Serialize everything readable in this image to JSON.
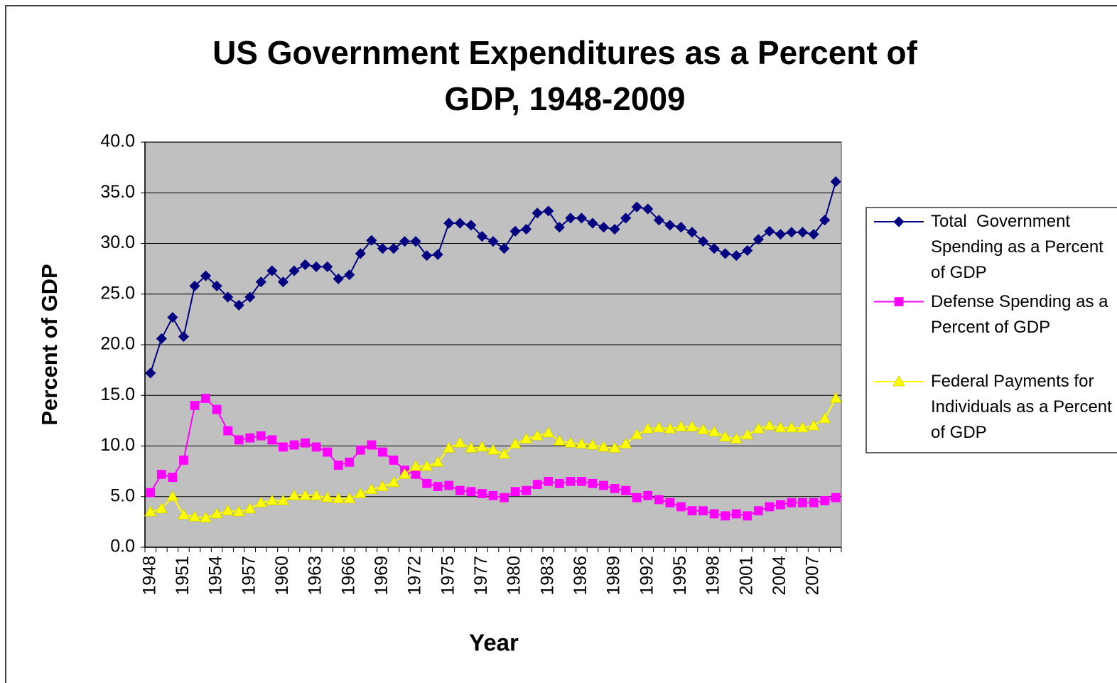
{
  "chart_data": {
    "type": "line",
    "title": "US Government Expenditures as a Percent of GDP, 1948-2009",
    "x_label": "Year",
    "y_label": "Percent of GDP",
    "categories": [
      "1948",
      null,
      null,
      "1951",
      null,
      null,
      "1954",
      null,
      null,
      "1957",
      null,
      null,
      "1960",
      null,
      null,
      "1963",
      null,
      null,
      "1966",
      null,
      null,
      "1969",
      null,
      null,
      "1972",
      null,
      null,
      "1975",
      null,
      null,
      "1977",
      null,
      null,
      "1980",
      null,
      null,
      "1983",
      null,
      null,
      "1986",
      null,
      null,
      "1989",
      null,
      null,
      "1992",
      null,
      null,
      "1995",
      null,
      null,
      "1998",
      null,
      null,
      "2001",
      null,
      null,
      "2004",
      null,
      null,
      "2007",
      null,
      null
    ],
    "ylim": [
      0,
      40
    ],
    "yticks": [
      {
        "value": 0,
        "label": "0.0"
      },
      {
        "value": 5,
        "label": "5.0"
      },
      {
        "value": 10,
        "label": "10.0"
      },
      {
        "value": 15,
        "label": "15.0"
      },
      {
        "value": 20,
        "label": "20.0"
      },
      {
        "value": 25,
        "label": "25.0"
      },
      {
        "value": 30,
        "label": "30.0"
      },
      {
        "value": 35,
        "label": "35.0"
      },
      {
        "value": 40,
        "label": "40.0"
      }
    ],
    "grid": true,
    "legend": "right",
    "series": [
      {
        "name": "Total  Government Spending as a Percent of GDP",
        "color": "#000080",
        "marker": "diamond",
        "values": [
          17.2,
          20.6,
          22.7,
          20.8,
          25.8,
          26.8,
          25.8,
          24.7,
          23.9,
          24.7,
          26.2,
          27.3,
          26.2,
          27.3,
          27.9,
          27.7,
          27.7,
          26.5,
          26.9,
          29.0,
          30.3,
          29.5,
          29.5,
          30.2,
          30.2,
          28.8,
          28.9,
          32.0,
          32.0,
          31.8,
          30.7,
          30.2,
          29.5,
          31.2,
          31.4,
          33.0,
          33.2,
          31.6,
          32.5,
          32.5,
          32.0,
          31.6,
          31.4,
          32.5,
          33.6,
          33.4,
          32.3,
          31.8,
          31.6,
          31.1,
          30.2,
          29.5,
          29.0,
          28.8,
          29.3,
          30.4,
          31.2,
          30.9,
          31.1,
          31.1,
          30.9,
          32.3,
          36.1
        ]
      },
      {
        "name": "Defense Spending as a Percent of GDP",
        "color": "#ff00ff",
        "marker": "square",
        "values": [
          5.4,
          7.2,
          6.9,
          8.6,
          14.0,
          14.7,
          13.6,
          11.5,
          10.6,
          10.8,
          11.0,
          10.6,
          9.9,
          10.1,
          10.3,
          9.9,
          9.4,
          8.1,
          8.4,
          9.6,
          10.1,
          9.4,
          8.6,
          7.6,
          7.2,
          6.3,
          6.0,
          6.1,
          5.6,
          5.5,
          5.3,
          5.1,
          4.9,
          5.5,
          5.6,
          6.2,
          6.5,
          6.3,
          6.5,
          6.5,
          6.3,
          6.1,
          5.8,
          5.6,
          4.9,
          5.1,
          4.7,
          4.4,
          4.0,
          3.6,
          3.6,
          3.3,
          3.1,
          3.3,
          3.1,
          3.6,
          4.0,
          4.2,
          4.4,
          4.4,
          4.4,
          4.6,
          4.9
        ]
      },
      {
        "name": "Federal Payments for Individuals as a Percent of GDP",
        "color": "#ffff00",
        "marker": "triangle",
        "values": [
          3.5,
          3.8,
          5.0,
          3.2,
          3.0,
          2.9,
          3.3,
          3.6,
          3.5,
          3.8,
          4.4,
          4.6,
          4.6,
          5.1,
          5.1,
          5.1,
          4.9,
          4.8,
          4.8,
          5.3,
          5.7,
          6.0,
          6.4,
          7.2,
          8.0,
          8.0,
          8.4,
          9.8,
          10.3,
          9.8,
          9.9,
          9.6,
          9.2,
          10.2,
          10.7,
          11.0,
          11.3,
          10.5,
          10.3,
          10.2,
          10.1,
          9.9,
          9.8,
          10.2,
          11.1,
          11.7,
          11.8,
          11.7,
          11.9,
          11.9,
          11.6,
          11.4,
          10.9,
          10.7,
          11.1,
          11.7,
          12.0,
          11.8,
          11.8,
          11.8,
          12.0,
          12.7,
          14.7
        ]
      }
    ]
  }
}
